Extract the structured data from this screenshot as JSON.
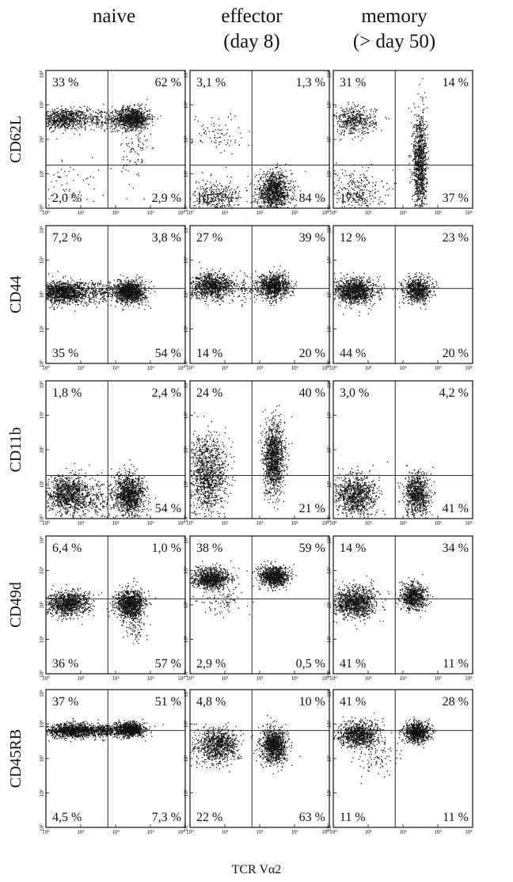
{
  "chart_data": {
    "type": "scatter",
    "columns": [
      "naive",
      "effector\n(day 8)",
      "memory\n(> day 50)"
    ],
    "rows": [
      "CD62L",
      "CD44",
      "CD11b",
      "CD49d",
      "CD45RB"
    ],
    "xlabel": "TCR Vα2",
    "xscale": "log",
    "yscale": "log",
    "xlim": [
      1,
      10000
    ],
    "ylim": [
      1,
      10000
    ],
    "tick_labels": [
      "10⁰",
      "10¹",
      "10²",
      "10³",
      "10⁴"
    ],
    "panels": [
      {
        "row": "CD62L",
        "column": "naive",
        "gate": [
          60,
          18
        ],
        "quadrants": {
          "ul": "33 %",
          "ur": "62 %",
          "ll": "2,0 %",
          "lr": "2,9 %"
        },
        "clusters": [
          {
            "x": 3,
            "y": 400,
            "n": 700,
            "sx": 0.35,
            "sy": 0.15
          },
          {
            "x": 300,
            "y": 420,
            "n": 900,
            "sx": 0.25,
            "sy": 0.16
          },
          {
            "x": 40,
            "y": 400,
            "n": 250,
            "sx": 0.45,
            "sy": 0.15
          },
          {
            "x": 350,
            "y": 40,
            "n": 80,
            "sx": 0.2,
            "sy": 0.5
          },
          {
            "x": 5,
            "y": 5,
            "n": 60,
            "sx": 0.4,
            "sy": 0.4
          }
        ]
      },
      {
        "row": "CD62L",
        "column": "effector\n(day 8)",
        "gate": [
          60,
          18
        ],
        "quadrants": {
          "ul": "3,1 %",
          "ur": "1,3 %",
          "ll": "10,7 %",
          "lr": "84 %"
        },
        "clusters": [
          {
            "x": 250,
            "y": 3,
            "n": 1100,
            "sx": 0.25,
            "sy": 0.28
          },
          {
            "x": 5,
            "y": 2,
            "n": 350,
            "sx": 0.4,
            "sy": 0.25
          },
          {
            "x": 6,
            "y": 150,
            "n": 80,
            "sx": 0.35,
            "sy": 0.3
          }
        ]
      },
      {
        "row": "CD62L",
        "column": "memory\n(> day 50)",
        "gate": [
          60,
          18
        ],
        "quadrants": {
          "ul": "31 %",
          "ur": "14 %",
          "ll": "17 %",
          "lr": "37 %"
        },
        "clusters": [
          {
            "x": 4,
            "y": 350,
            "n": 450,
            "sx": 0.3,
            "sy": 0.2
          },
          {
            "x": 300,
            "y": 20,
            "n": 1000,
            "sx": 0.1,
            "sy": 0.75
          },
          {
            "x": 4,
            "y": 3,
            "n": 300,
            "sx": 0.4,
            "sy": 0.35
          }
        ]
      },
      {
        "row": "CD44",
        "column": "naive",
        "gate": [
          60,
          150
        ],
        "quadrants": {
          "ul": "7,2 %",
          "ur": "3,8 %",
          "ll": "35 %",
          "lr": "54 %"
        },
        "clusters": [
          {
            "x": 3,
            "y": 120,
            "n": 1200,
            "sx": 0.35,
            "sy": 0.16
          },
          {
            "x": 250,
            "y": 120,
            "n": 1100,
            "sx": 0.22,
            "sy": 0.16
          },
          {
            "x": 30,
            "y": 120,
            "n": 250,
            "sx": 0.35,
            "sy": 0.15
          }
        ]
      },
      {
        "row": "CD44",
        "column": "effector\n(day 8)",
        "gate": [
          60,
          150
        ],
        "quadrants": {
          "ul": "27 %",
          "ur": "39 %",
          "ll": "14 %",
          "lr": "20 %"
        },
        "clusters": [
          {
            "x": 4,
            "y": 180,
            "n": 900,
            "sx": 0.3,
            "sy": 0.18
          },
          {
            "x": 250,
            "y": 180,
            "n": 900,
            "sx": 0.22,
            "sy": 0.18
          },
          {
            "x": 30,
            "y": 150,
            "n": 120,
            "sx": 0.4,
            "sy": 0.2
          }
        ]
      },
      {
        "row": "CD44",
        "column": "memory\n(> day 50)",
        "gate": [
          60,
          150
        ],
        "quadrants": {
          "ul": "12 %",
          "ur": "23 %",
          "ll": "44 %",
          "lr": "20 %"
        },
        "clusters": [
          {
            "x": 4,
            "y": 130,
            "n": 1100,
            "sx": 0.3,
            "sy": 0.18
          },
          {
            "x": 250,
            "y": 140,
            "n": 700,
            "sx": 0.2,
            "sy": 0.18
          }
        ]
      },
      {
        "row": "CD11b",
        "column": "naive",
        "gate": [
          60,
          18
        ],
        "quadrants": {
          "ul": "1,8 %",
          "ur": "2,4 %",
          "ll": "",
          "lr": "54 %"
        },
        "clusters": [
          {
            "x": 4,
            "y": 5,
            "n": 1000,
            "sx": 0.3,
            "sy": 0.28
          },
          {
            "x": 250,
            "y": 5,
            "n": 1100,
            "sx": 0.22,
            "sy": 0.3
          },
          {
            "x": 30,
            "y": 4,
            "n": 250,
            "sx": 0.4,
            "sy": 0.3
          }
        ]
      },
      {
        "row": "CD11b",
        "column": "effector\n(day 8)",
        "gate": [
          60,
          18
        ],
        "quadrants": {
          "ul": "24 %",
          "ur": "40 %",
          "ll": "",
          "lr": "21 %"
        },
        "clusters": [
          {
            "x": 3,
            "y": 20,
            "n": 1100,
            "sx": 0.28,
            "sy": 0.55
          },
          {
            "x": 250,
            "y": 60,
            "n": 1200,
            "sx": 0.15,
            "sy": 0.5
          }
        ]
      },
      {
        "row": "CD11b",
        "column": "memory\n(> day 50)",
        "gate": [
          60,
          18
        ],
        "quadrants": {
          "ul": "3,0 %",
          "ur": "4,2 %",
          "ll": "",
          "lr": "41 %"
        },
        "clusters": [
          {
            "x": 4,
            "y": 5,
            "n": 900,
            "sx": 0.3,
            "sy": 0.3
          },
          {
            "x": 250,
            "y": 5,
            "n": 800,
            "sx": 0.18,
            "sy": 0.32
          }
        ]
      },
      {
        "row": "CD49d",
        "column": "naive",
        "gate": [
          60,
          150
        ],
        "quadrants": {
          "ul": "6,4 %",
          "ur": "1,0 %",
          "ll": "36 %",
          "lr": "57 %"
        },
        "clusters": [
          {
            "x": 4,
            "y": 110,
            "n": 1000,
            "sx": 0.3,
            "sy": 0.18
          },
          {
            "x": 250,
            "y": 110,
            "n": 1000,
            "sx": 0.2,
            "sy": 0.2
          },
          {
            "x": 350,
            "y": 30,
            "n": 100,
            "sx": 0.15,
            "sy": 0.3
          }
        ]
      },
      {
        "row": "CD49d",
        "column": "effector\n(day 8)",
        "gate": [
          60,
          150
        ],
        "quadrants": {
          "ul": "38 %",
          "ur": "59 %",
          "ll": "2,9 %",
          "lr": "0,5 %"
        },
        "clusters": [
          {
            "x": 4,
            "y": 600,
            "n": 900,
            "sx": 0.28,
            "sy": 0.15
          },
          {
            "x": 250,
            "y": 700,
            "n": 900,
            "sx": 0.2,
            "sy": 0.14
          },
          {
            "x": 8,
            "y": 130,
            "n": 80,
            "sx": 0.35,
            "sy": 0.2
          }
        ]
      },
      {
        "row": "CD49d",
        "column": "memory\n(> day 50)",
        "gate": [
          60,
          150
        ],
        "quadrants": {
          "ul": "14 %",
          "ur": "34 %",
          "ll": "41 %",
          "lr": "11 %"
        },
        "clusters": [
          {
            "x": 4,
            "y": 120,
            "n": 1100,
            "sx": 0.3,
            "sy": 0.22
          },
          {
            "x": 200,
            "y": 180,
            "n": 700,
            "sx": 0.18,
            "sy": 0.2
          }
        ]
      },
      {
        "row": "CD45RB",
        "column": "naive",
        "gate": [
          60,
          650
        ],
        "quadrants": {
          "ul": "37 %",
          "ur": "51 %",
          "ll": "4,5 %",
          "lr": "7,3 %"
        },
        "clusters": [
          {
            "x": 5,
            "y": 650,
            "n": 900,
            "sx": 0.35,
            "sy": 0.1
          },
          {
            "x": 250,
            "y": 700,
            "n": 900,
            "sx": 0.22,
            "sy": 0.1
          },
          {
            "x": 40,
            "y": 650,
            "n": 400,
            "sx": 0.4,
            "sy": 0.1
          }
        ]
      },
      {
        "row": "CD45RB",
        "column": "effector\n(day 8)",
        "gate": [
          60,
          650
        ],
        "quadrants": {
          "ul": "4,8 %",
          "ur": "10 %",
          "ll": "22 %",
          "lr": "63 %"
        },
        "clusters": [
          {
            "x": 6,
            "y": 250,
            "n": 900,
            "sx": 0.3,
            "sy": 0.25
          },
          {
            "x": 250,
            "y": 250,
            "n": 1100,
            "sx": 0.18,
            "sy": 0.25
          }
        ]
      },
      {
        "row": "CD45RB",
        "column": "memory\n(> day 50)",
        "gate": [
          60,
          650
        ],
        "quadrants": {
          "ul": "41 %",
          "ur": "28 %",
          "ll": "11 %",
          "lr": "11 %"
        },
        "clusters": [
          {
            "x": 5,
            "y": 500,
            "n": 900,
            "sx": 0.3,
            "sy": 0.18
          },
          {
            "x": 250,
            "y": 600,
            "n": 800,
            "sx": 0.18,
            "sy": 0.15
          },
          {
            "x": 20,
            "y": 120,
            "n": 100,
            "sx": 0.3,
            "sy": 0.3
          }
        ]
      }
    ]
  }
}
